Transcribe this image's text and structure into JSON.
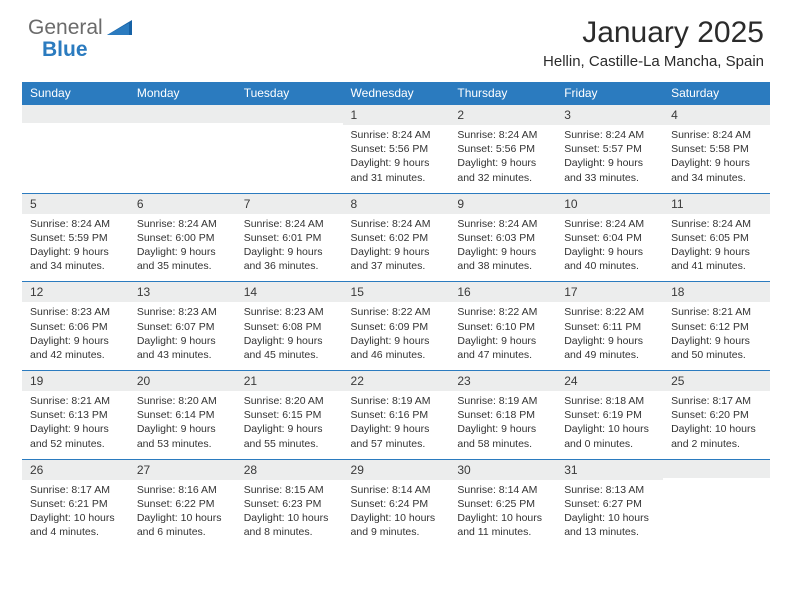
{
  "logo": {
    "text1": "General",
    "text2": "Blue"
  },
  "title": "January 2025",
  "subtitle": "Hellin, Castille-La Mancha, Spain",
  "colors": {
    "header_bg": "#2b7bbf",
    "header_text": "#ffffff",
    "daynum_bg": "#eceded",
    "text": "#333333",
    "border": "#2b7bbf",
    "background": "#ffffff"
  },
  "daynames": [
    "Sunday",
    "Monday",
    "Tuesday",
    "Wednesday",
    "Thursday",
    "Friday",
    "Saturday"
  ],
  "weeks": [
    [
      {
        "n": "",
        "lines": []
      },
      {
        "n": "",
        "lines": []
      },
      {
        "n": "",
        "lines": []
      },
      {
        "n": "1",
        "lines": [
          "Sunrise: 8:24 AM",
          "Sunset: 5:56 PM",
          "Daylight: 9 hours",
          "and 31 minutes."
        ]
      },
      {
        "n": "2",
        "lines": [
          "Sunrise: 8:24 AM",
          "Sunset: 5:56 PM",
          "Daylight: 9 hours",
          "and 32 minutes."
        ]
      },
      {
        "n": "3",
        "lines": [
          "Sunrise: 8:24 AM",
          "Sunset: 5:57 PM",
          "Daylight: 9 hours",
          "and 33 minutes."
        ]
      },
      {
        "n": "4",
        "lines": [
          "Sunrise: 8:24 AM",
          "Sunset: 5:58 PM",
          "Daylight: 9 hours",
          "and 34 minutes."
        ]
      }
    ],
    [
      {
        "n": "5",
        "lines": [
          "Sunrise: 8:24 AM",
          "Sunset: 5:59 PM",
          "Daylight: 9 hours",
          "and 34 minutes."
        ]
      },
      {
        "n": "6",
        "lines": [
          "Sunrise: 8:24 AM",
          "Sunset: 6:00 PM",
          "Daylight: 9 hours",
          "and 35 minutes."
        ]
      },
      {
        "n": "7",
        "lines": [
          "Sunrise: 8:24 AM",
          "Sunset: 6:01 PM",
          "Daylight: 9 hours",
          "and 36 minutes."
        ]
      },
      {
        "n": "8",
        "lines": [
          "Sunrise: 8:24 AM",
          "Sunset: 6:02 PM",
          "Daylight: 9 hours",
          "and 37 minutes."
        ]
      },
      {
        "n": "9",
        "lines": [
          "Sunrise: 8:24 AM",
          "Sunset: 6:03 PM",
          "Daylight: 9 hours",
          "and 38 minutes."
        ]
      },
      {
        "n": "10",
        "lines": [
          "Sunrise: 8:24 AM",
          "Sunset: 6:04 PM",
          "Daylight: 9 hours",
          "and 40 minutes."
        ]
      },
      {
        "n": "11",
        "lines": [
          "Sunrise: 8:24 AM",
          "Sunset: 6:05 PM",
          "Daylight: 9 hours",
          "and 41 minutes."
        ]
      }
    ],
    [
      {
        "n": "12",
        "lines": [
          "Sunrise: 8:23 AM",
          "Sunset: 6:06 PM",
          "Daylight: 9 hours",
          "and 42 minutes."
        ]
      },
      {
        "n": "13",
        "lines": [
          "Sunrise: 8:23 AM",
          "Sunset: 6:07 PM",
          "Daylight: 9 hours",
          "and 43 minutes."
        ]
      },
      {
        "n": "14",
        "lines": [
          "Sunrise: 8:23 AM",
          "Sunset: 6:08 PM",
          "Daylight: 9 hours",
          "and 45 minutes."
        ]
      },
      {
        "n": "15",
        "lines": [
          "Sunrise: 8:22 AM",
          "Sunset: 6:09 PM",
          "Daylight: 9 hours",
          "and 46 minutes."
        ]
      },
      {
        "n": "16",
        "lines": [
          "Sunrise: 8:22 AM",
          "Sunset: 6:10 PM",
          "Daylight: 9 hours",
          "and 47 minutes."
        ]
      },
      {
        "n": "17",
        "lines": [
          "Sunrise: 8:22 AM",
          "Sunset: 6:11 PM",
          "Daylight: 9 hours",
          "and 49 minutes."
        ]
      },
      {
        "n": "18",
        "lines": [
          "Sunrise: 8:21 AM",
          "Sunset: 6:12 PM",
          "Daylight: 9 hours",
          "and 50 minutes."
        ]
      }
    ],
    [
      {
        "n": "19",
        "lines": [
          "Sunrise: 8:21 AM",
          "Sunset: 6:13 PM",
          "Daylight: 9 hours",
          "and 52 minutes."
        ]
      },
      {
        "n": "20",
        "lines": [
          "Sunrise: 8:20 AM",
          "Sunset: 6:14 PM",
          "Daylight: 9 hours",
          "and 53 minutes."
        ]
      },
      {
        "n": "21",
        "lines": [
          "Sunrise: 8:20 AM",
          "Sunset: 6:15 PM",
          "Daylight: 9 hours",
          "and 55 minutes."
        ]
      },
      {
        "n": "22",
        "lines": [
          "Sunrise: 8:19 AM",
          "Sunset: 6:16 PM",
          "Daylight: 9 hours",
          "and 57 minutes."
        ]
      },
      {
        "n": "23",
        "lines": [
          "Sunrise: 8:19 AM",
          "Sunset: 6:18 PM",
          "Daylight: 9 hours",
          "and 58 minutes."
        ]
      },
      {
        "n": "24",
        "lines": [
          "Sunrise: 8:18 AM",
          "Sunset: 6:19 PM",
          "Daylight: 10 hours",
          "and 0 minutes."
        ]
      },
      {
        "n": "25",
        "lines": [
          "Sunrise: 8:17 AM",
          "Sunset: 6:20 PM",
          "Daylight: 10 hours",
          "and 2 minutes."
        ]
      }
    ],
    [
      {
        "n": "26",
        "lines": [
          "Sunrise: 8:17 AM",
          "Sunset: 6:21 PM",
          "Daylight: 10 hours",
          "and 4 minutes."
        ]
      },
      {
        "n": "27",
        "lines": [
          "Sunrise: 8:16 AM",
          "Sunset: 6:22 PM",
          "Daylight: 10 hours",
          "and 6 minutes."
        ]
      },
      {
        "n": "28",
        "lines": [
          "Sunrise: 8:15 AM",
          "Sunset: 6:23 PM",
          "Daylight: 10 hours",
          "and 8 minutes."
        ]
      },
      {
        "n": "29",
        "lines": [
          "Sunrise: 8:14 AM",
          "Sunset: 6:24 PM",
          "Daylight: 10 hours",
          "and 9 minutes."
        ]
      },
      {
        "n": "30",
        "lines": [
          "Sunrise: 8:14 AM",
          "Sunset: 6:25 PM",
          "Daylight: 10 hours",
          "and 11 minutes."
        ]
      },
      {
        "n": "31",
        "lines": [
          "Sunrise: 8:13 AM",
          "Sunset: 6:27 PM",
          "Daylight: 10 hours",
          "and 13 minutes."
        ]
      },
      {
        "n": "",
        "lines": []
      }
    ]
  ]
}
